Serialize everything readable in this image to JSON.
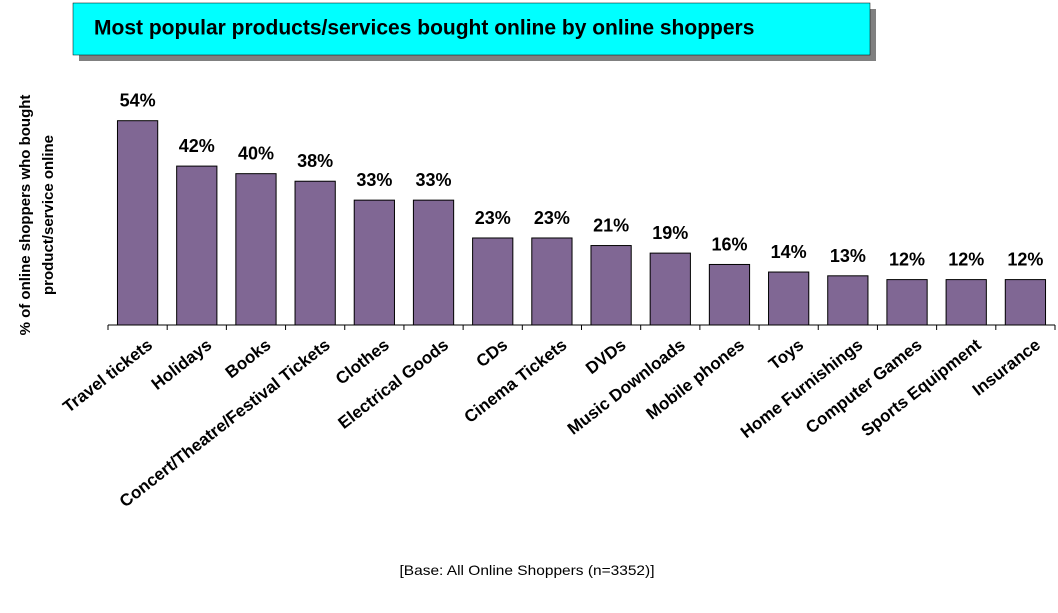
{
  "chart_data": {
    "type": "bar",
    "title": "Most popular products/services bought online by online shoppers",
    "ylabel": [
      "% of online shoppers who bought",
      "product/service online"
    ],
    "categories": [
      "Travel tickets",
      "Holidays",
      "Books",
      "Concert/Theatre/Festival Tickets",
      "Clothes",
      "Electrical Goods",
      "CDs",
      "Cinema Tickets",
      "DVDs",
      "Music Downloads",
      "Mobile phones",
      "Toys",
      "Home Furnishings",
      "Computer Games",
      "Sports Equipment",
      "Insurance"
    ],
    "values": [
      54,
      42,
      40,
      38,
      33,
      33,
      23,
      23,
      21,
      19,
      16,
      14,
      13,
      12,
      12,
      12
    ],
    "value_labels": [
      "54%",
      "42%",
      "40%",
      "38%",
      "33%",
      "33%",
      "23%",
      "23%",
      "21%",
      "19%",
      "16%",
      "14%",
      "13%",
      "12%",
      "12%",
      "12%"
    ],
    "color": "#806794",
    "ylim": [
      0,
      60
    ],
    "note": "[Base: All Online Shoppers (n=3352)]"
  }
}
